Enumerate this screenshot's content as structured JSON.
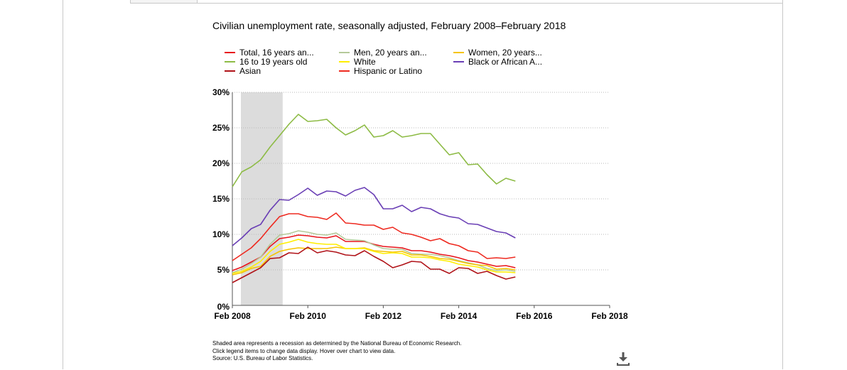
{
  "page": {
    "footnotes": [
      "Shaded area represents a recession as determined by the National Bureau of Economic Research.",
      "Click legend items to change data display. Hover over chart to view data.",
      "Source: U.S. Bureau of Labor Statistics."
    ],
    "download_icon": "download-icon"
  },
  "chart_data": {
    "type": "line",
    "title": "Civilian unemployment rate, seasonally adjusted, February 2008–February 2018",
    "xlabel": "",
    "ylabel": "",
    "ylim": [
      0,
      30
    ],
    "y_ticks": [
      "0%",
      "5%",
      "10%",
      "15%",
      "20%",
      "25%",
      "30%"
    ],
    "x_ticks": [
      "Feb 2008",
      "Feb 2010",
      "Feb 2012",
      "Feb 2014",
      "Feb 2016",
      "Feb 2018"
    ],
    "x_range": [
      "2008-02",
      "2018-02"
    ],
    "recession": {
      "start": "2008-02",
      "end": "2009-06"
    },
    "grid": "horizontal-dotted",
    "legend_position": "top",
    "x": [
      "2008-02",
      "2008-05",
      "2008-08",
      "2008-11",
      "2009-02",
      "2009-05",
      "2009-08",
      "2009-11",
      "2010-02",
      "2010-05",
      "2010-08",
      "2010-11",
      "2011-02",
      "2011-05",
      "2011-08",
      "2011-11",
      "2012-02",
      "2012-05",
      "2012-08",
      "2012-11",
      "2013-02",
      "2013-05",
      "2013-08",
      "2013-11",
      "2014-02",
      "2014-05",
      "2014-08",
      "2014-11",
      "2015-02",
      "2015-05",
      "2015-08"
    ],
    "series": [
      {
        "name": "Total, 16 years an...",
        "color": "#e8141c",
        "values": [
          4.9,
          5.4,
          6.1,
          6.8,
          8.3,
          9.4,
          9.6,
          9.9,
          9.8,
          9.6,
          9.5,
          9.8,
          9.0,
          9.0,
          9.0,
          8.6,
          8.3,
          8.2,
          8.1,
          7.7,
          7.7,
          7.5,
          7.2,
          7.0,
          6.7,
          6.3,
          6.1,
          5.8,
          5.5,
          5.6,
          5.3
        ]
      },
      {
        "name": "Men, 20 years an...",
        "color": "#b5c99a",
        "values": [
          4.6,
          5.1,
          5.9,
          6.8,
          8.6,
          9.9,
          10.1,
          10.5,
          10.3,
          10.0,
          9.9,
          10.2,
          9.3,
          9.2,
          9.1,
          8.5,
          8.0,
          7.9,
          7.9,
          7.3,
          7.2,
          7.2,
          7.0,
          6.7,
          6.3,
          6.0,
          5.7,
          5.2,
          4.9,
          5.0,
          4.8
        ]
      },
      {
        "name": "Women, 20 years...",
        "color": "#f5c400",
        "values": [
          4.3,
          4.6,
          5.2,
          5.5,
          6.9,
          7.6,
          7.9,
          8.1,
          8.0,
          8.0,
          8.0,
          8.2,
          8.0,
          8.0,
          8.1,
          7.7,
          7.6,
          7.5,
          7.6,
          7.1,
          7.1,
          6.9,
          6.6,
          6.5,
          6.2,
          5.9,
          5.7,
          5.6,
          5.1,
          5.2,
          5.0
        ]
      },
      {
        "name": "16 to 19 years old",
        "color": "#8dbb45",
        "values": [
          16.7,
          18.8,
          19.5,
          20.5,
          22.3,
          23.9,
          25.5,
          26.9,
          25.9,
          26.0,
          26.2,
          25.0,
          24.0,
          24.6,
          25.4,
          23.7,
          23.9,
          24.6,
          23.7,
          23.9,
          24.2,
          24.2,
          22.7,
          21.2,
          21.5,
          19.8,
          19.9,
          18.4,
          17.1,
          17.9,
          17.5
        ]
      },
      {
        "name": "White",
        "color": "#ffee00",
        "values": [
          4.5,
          4.8,
          5.4,
          6.2,
          7.6,
          8.6,
          8.9,
          9.3,
          8.9,
          8.7,
          8.6,
          8.6,
          8.0,
          8.0,
          8.0,
          7.6,
          7.3,
          7.4,
          7.3,
          6.8,
          6.8,
          6.7,
          6.4,
          6.2,
          5.8,
          5.6,
          5.4,
          5.0,
          4.7,
          4.7,
          4.6
        ]
      },
      {
        "name": "Black or African A...",
        "color": "#6a3fb5",
        "values": [
          8.4,
          9.5,
          10.8,
          11.4,
          13.4,
          14.9,
          14.8,
          15.6,
          16.5,
          15.5,
          16.1,
          16.0,
          15.4,
          16.2,
          16.6,
          15.6,
          13.6,
          13.6,
          14.1,
          13.2,
          13.8,
          13.6,
          12.9,
          12.5,
          12.3,
          11.5,
          11.4,
          10.9,
          10.4,
          10.2,
          9.5
        ]
      },
      {
        "name": "Asian",
        "color": "#b01218",
        "values": [
          3.2,
          3.9,
          4.6,
          5.3,
          6.6,
          6.7,
          7.4,
          7.3,
          8.2,
          7.4,
          7.7,
          7.5,
          7.1,
          7.0,
          7.7,
          6.9,
          6.2,
          5.3,
          5.7,
          6.2,
          6.1,
          5.1,
          5.1,
          4.5,
          5.3,
          5.2,
          4.5,
          4.8,
          4.2,
          3.7,
          4.0
        ]
      },
      {
        "name": "Hispanic or Latino",
        "color": "#ee2a20",
        "values": [
          6.3,
          7.2,
          8.1,
          9.4,
          11.0,
          12.5,
          12.9,
          12.9,
          12.5,
          12.4,
          12.1,
          13.0,
          11.6,
          11.5,
          11.3,
          11.3,
          10.7,
          11.0,
          10.2,
          10.0,
          9.6,
          9.1,
          9.4,
          8.7,
          8.4,
          7.7,
          7.5,
          6.6,
          6.7,
          6.6,
          6.8
        ]
      }
    ]
  }
}
